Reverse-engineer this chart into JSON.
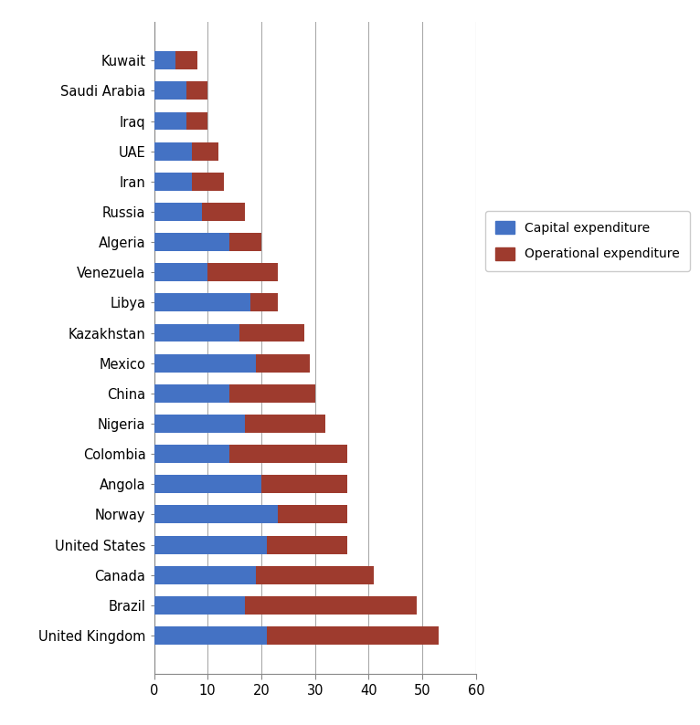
{
  "countries": [
    "United Kingdom",
    "Brazil",
    "Canada",
    "United States",
    "Norway",
    "Angola",
    "Colombia",
    "Nigeria",
    "China",
    "Mexico",
    "Kazakhstan",
    "Libya",
    "Venezuela",
    "Algeria",
    "Russia",
    "Iran",
    "UAE",
    "Iraq",
    "Saudi Arabia",
    "Kuwait"
  ],
  "capital_expenditure": [
    21,
    17,
    19,
    21,
    23,
    20,
    14,
    17,
    14,
    19,
    16,
    18,
    10,
    14,
    9,
    7,
    7,
    6,
    6,
    4
  ],
  "operational_expenditure": [
    32,
    32,
    22,
    15,
    13,
    16,
    22,
    15,
    16,
    10,
    12,
    5,
    13,
    6,
    8,
    6,
    5,
    4,
    4,
    4
  ],
  "capital_color": "#4472C4",
  "operational_color": "#9E3B2E",
  "xlim": [
    0,
    60
  ],
  "xticks": [
    0,
    10,
    20,
    30,
    40,
    50,
    60
  ],
  "legend_labels": [
    "Capital expenditure",
    "Operational expenditure"
  ],
  "background_color": "#FFFFFF",
  "grid_color": "#AAAAAA"
}
